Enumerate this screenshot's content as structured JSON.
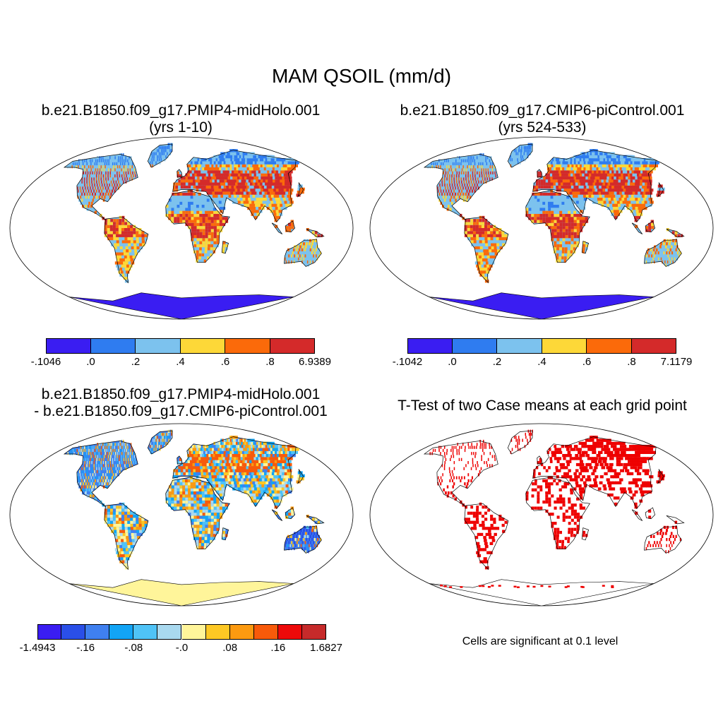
{
  "figure": {
    "title": "MAM QSOIL (mm/d)"
  },
  "panels": [
    {
      "id": "case1",
      "title_line1": "b.e21.B1850.f09_g17.PMIP4-midHolo.001",
      "title_line2": "(yrs 1-10)",
      "colorbar": {
        "colors": [
          "#3a1df2",
          "#2f7cf0",
          "#7cc2ee",
          "#fdd838",
          "#fb6a0a",
          "#d42a2a"
        ],
        "labels": [
          "-.1046",
          ".0",
          ".2",
          ".4",
          ".6",
          ".8",
          "6.9389"
        ]
      }
    },
    {
      "id": "case2",
      "title_line1": "b.e21.B1850.f09_g17.CMIP6-piControl.001",
      "title_line2": "(yrs 524-533)",
      "colorbar": {
        "colors": [
          "#3a1df2",
          "#2f7cf0",
          "#7cc2ee",
          "#fdd838",
          "#fb6a0a",
          "#d42a2a"
        ],
        "labels": [
          "-.1042",
          ".0",
          ".2",
          ".4",
          ".6",
          ".8",
          "7.1179"
        ]
      }
    },
    {
      "id": "difference",
      "title_line1": "b.e21.B1850.f09_g17.PMIP4-midHolo.001",
      "title_line2": "- b.e21.B1850.f09_g17.CMIP6-piControl.001",
      "colorbar": {
        "colors": [
          "#3a1df2",
          "#2a4fe8",
          "#3f80f0",
          "#12a4f5",
          "#4fc3f7",
          "#a9d9ef",
          "#fff59a",
          "#fdc824",
          "#fc9a10",
          "#f85a0a",
          "#ee0a0a",
          "#c62a2a"
        ],
        "labels": [
          "-1.4943",
          "-.16",
          "-.08",
          "-.0",
          ".08",
          ".16",
          "1.6827"
        ]
      }
    },
    {
      "id": "ttest",
      "title_line1": "T-Test of two Case means at each grid point",
      "note": "Cells are significant at 0.1 level",
      "significant_color": "#ee0000"
    }
  ],
  "colors": {
    "land_outline": "#000000",
    "ocean": "#ffffff",
    "antarctica_cases": "#3a1df2",
    "antarctica_difference": "#fff59a"
  }
}
